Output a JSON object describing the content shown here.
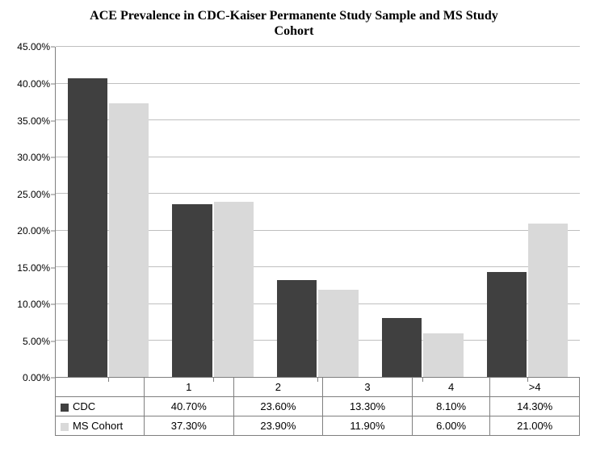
{
  "chart": {
    "type": "bar",
    "title_line1": "ACE Prevalence in CDC-Kaiser Permanente Study Sample and MS Study",
    "title_line2": "Cohort",
    "title_fontsize": 16,
    "title_font": "Times New Roman",
    "label_font": "Arial",
    "label_fontsize": 12,
    "background_color": "#ffffff",
    "grid_color": "#bfbfbf",
    "axis_color": "#7f7f7f",
    "ylim": [
      0,
      45
    ],
    "ytick_step": 5,
    "ytick_format_suffix": ".00%",
    "categories": [
      "1",
      "2",
      "3",
      "4",
      ">4"
    ],
    "series": [
      {
        "name": "CDC",
        "color": "#404040",
        "values": [
          40.7,
          23.6,
          13.3,
          8.1,
          14.3
        ],
        "display": [
          "40.70%",
          "23.60%",
          "13.30%",
          "8.10%",
          "14.30%"
        ]
      },
      {
        "name": "MS Cohort",
        "color": "#d9d9d9",
        "values": [
          37.3,
          23.9,
          11.9,
          6.0,
          21.0
        ],
        "display": [
          "37.30%",
          "23.90%",
          "11.90%",
          "6.00%",
          "21.00%"
        ]
      }
    ],
    "bar_group_gap_ratio": 0.24
  }
}
